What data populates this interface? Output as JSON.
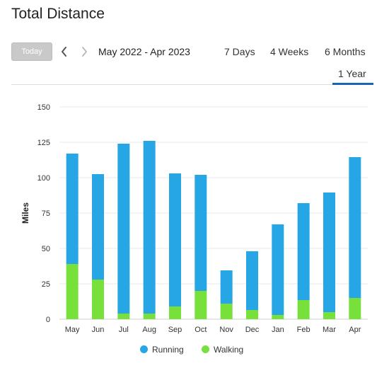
{
  "header": {
    "title": "Total Distance"
  },
  "toolbar": {
    "today_label": "Today",
    "prev_icon": "chevron-left-icon",
    "next_icon": "chevron-right-icon",
    "date_range": "May 2022 - Apr 2023",
    "tabs": [
      {
        "label": "7 Days",
        "active": false
      },
      {
        "label": "4 Weeks",
        "active": false
      },
      {
        "label": "6 Months",
        "active": false
      },
      {
        "label": "1 Year",
        "active": true
      }
    ],
    "active_color": "#1a66b3"
  },
  "chart_data": {
    "type": "bar",
    "stacked": true,
    "categories": [
      "May",
      "Jun",
      "Jul",
      "Aug",
      "Sep",
      "Oct",
      "Nov",
      "Dec",
      "Jan",
      "Feb",
      "Mar",
      "Apr"
    ],
    "series": [
      {
        "name": "Walking",
        "color": "#78e03b",
        "values": [
          39,
          28,
          4,
          4,
          9,
          20,
          11,
          6.5,
          3,
          13.5,
          5,
          15
        ]
      },
      {
        "name": "Running",
        "color": "#27a6e6",
        "values": [
          78,
          74.5,
          120,
          122,
          94,
          82,
          23.5,
          41.5,
          64,
          68.5,
          84.5,
          99.5
        ]
      }
    ],
    "totals": [
      117,
      102.5,
      124,
      126,
      103,
      102,
      34.5,
      48,
      67,
      82,
      89.5,
      114.5
    ],
    "ylabel": "Miles",
    "ylim": [
      0,
      150
    ],
    "yticks": [
      0,
      25,
      50,
      75,
      100,
      125,
      150
    ],
    "grid": true,
    "legend_position": "bottom-center",
    "legend": [
      {
        "name": "Running",
        "color": "#27a6e6"
      },
      {
        "name": "Walking",
        "color": "#78e03b"
      }
    ]
  }
}
